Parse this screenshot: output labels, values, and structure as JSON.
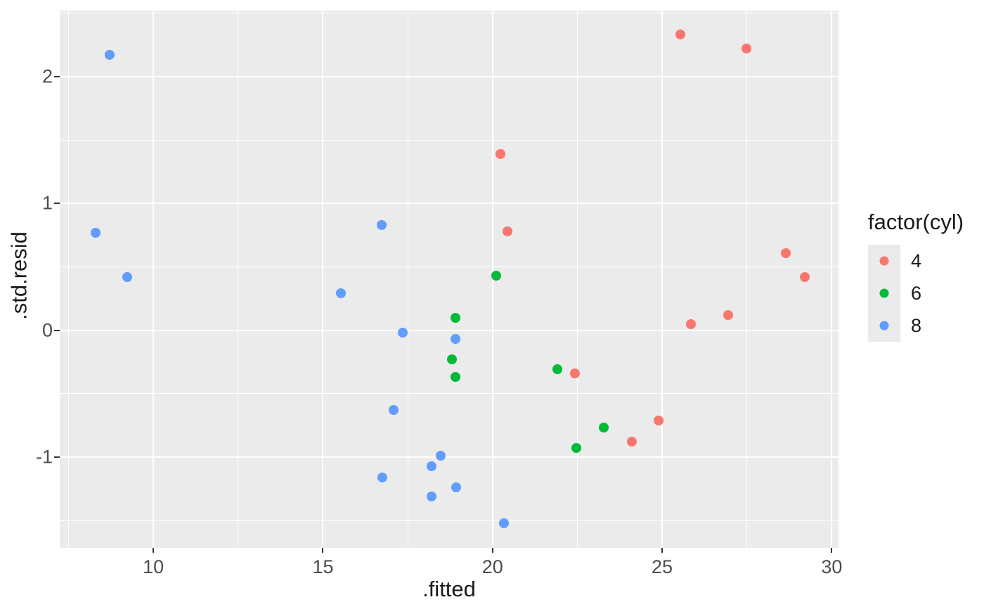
{
  "chart_data": {
    "type": "scatter",
    "title": "",
    "xlabel": ".fitted",
    "ylabel": ".std.resid",
    "legend_title": "factor(cyl)",
    "legend_position": "right",
    "grid": true,
    "panel_background": "#EBEBEB",
    "grid_color": "#FFFFFF",
    "tick_label_color": "#4D4D4D",
    "axis_title_color": "#1A1A1A",
    "xlim": [
      7.24,
      30.2
    ],
    "ylim": [
      -1.716,
      2.521
    ],
    "x_major_ticks": [
      10,
      15,
      20,
      25,
      30
    ],
    "x_minor_ticks": [
      7.5,
      12.5,
      17.5,
      22.5,
      27.5
    ],
    "y_major_ticks": [
      -1,
      0,
      1,
      2
    ],
    "y_minor_ticks": [
      -1.5,
      -0.5,
      0.5,
      1.5,
      2.5
    ],
    "series": [
      {
        "name": "4",
        "color": "#F8766D",
        "points": [
          [
            24.89,
            -0.71
          ],
          [
            20.24,
            1.39
          ],
          [
            20.45,
            0.78
          ],
          [
            25.53,
            2.33
          ],
          [
            28.65,
            0.61
          ],
          [
            27.48,
            2.22
          ],
          [
            24.11,
            -0.88
          ],
          [
            26.94,
            0.12
          ],
          [
            25.85,
            0.05
          ],
          [
            29.2,
            0.42
          ],
          [
            22.43,
            -0.34
          ]
        ]
      },
      {
        "name": "6",
        "color": "#00BA38",
        "points": [
          [
            23.28,
            -0.77
          ],
          [
            21.92,
            -0.31
          ],
          [
            20.1,
            0.43
          ],
          [
            18.8,
            -0.23
          ],
          [
            18.9,
            0.1
          ],
          [
            18.9,
            -0.37
          ],
          [
            22.48,
            -0.93
          ]
        ]
      },
      {
        "name": "8",
        "color": "#619CFF",
        "points": [
          [
            18.9,
            -0.07
          ],
          [
            18.21,
            -1.31
          ],
          [
            15.53,
            0.29
          ],
          [
            17.35,
            -0.02
          ],
          [
            17.09,
            -0.63
          ],
          [
            9.23,
            0.42
          ],
          [
            8.3,
            0.77
          ],
          [
            8.72,
            2.17
          ],
          [
            18.47,
            -0.99
          ],
          [
            18.93,
            -1.24
          ],
          [
            16.76,
            -1.16
          ],
          [
            16.74,
            0.83
          ],
          [
            20.34,
            -1.52
          ],
          [
            18.21,
            -1.07
          ]
        ]
      }
    ]
  }
}
